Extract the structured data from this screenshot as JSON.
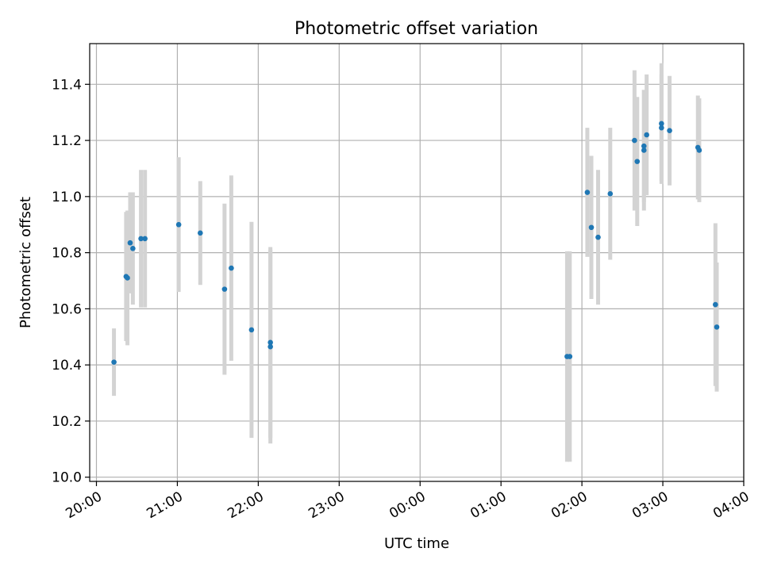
{
  "chart_data": {
    "type": "scatter",
    "title": "Photometric offset variation",
    "xlabel": "UTC time",
    "ylabel": "Photometric offset",
    "x_ticks": [
      "20:00",
      "21:00",
      "22:00",
      "23:00",
      "00:00",
      "01:00",
      "02:00",
      "03:00",
      "04:00"
    ],
    "y_ticks": [
      "10.0",
      "10.2",
      "10.4",
      "10.6",
      "10.8",
      "11.0",
      "11.2",
      "11.4"
    ],
    "xlim": [
      "19:55",
      "04:00"
    ],
    "ylim": [
      9.985,
      11.545
    ],
    "grid": true,
    "colors": {
      "point": "#1f77b4",
      "errorbar": "#d3d3d3",
      "grid": "#b0b0b0"
    },
    "points": [
      {
        "x": "20:13",
        "y": 10.41,
        "err": 0.12
      },
      {
        "x": "20:22",
        "y": 10.715,
        "err": 0.23
      },
      {
        "x": "20:23",
        "y": 10.71,
        "err": 0.24
      },
      {
        "x": "20:25",
        "y": 10.835,
        "err": 0.18
      },
      {
        "x": "20:27",
        "y": 10.815,
        "err": 0.2
      },
      {
        "x": "20:33",
        "y": 10.85,
        "err": 0.245
      },
      {
        "x": "20:36",
        "y": 10.85,
        "err": 0.245
      },
      {
        "x": "21:01",
        "y": 10.9,
        "err": 0.24
      },
      {
        "x": "21:17",
        "y": 10.87,
        "err": 0.185
      },
      {
        "x": "21:35",
        "y": 10.67,
        "err": 0.305
      },
      {
        "x": "21:40",
        "y": 10.745,
        "err": 0.33
      },
      {
        "x": "21:55",
        "y": 10.525,
        "err": 0.385
      },
      {
        "x": "22:09",
        "y": 10.48,
        "err": 0.34
      },
      {
        "x": "22:09",
        "y": 10.465,
        "err": 0.345
      },
      {
        "x": "01:49",
        "y": 10.43,
        "err": 0.375
      },
      {
        "x": "01:51",
        "y": 10.43,
        "err": 0.375
      },
      {
        "x": "02:04",
        "y": 11.015,
        "err": 0.23
      },
      {
        "x": "02:07",
        "y": 10.89,
        "err": 0.255
      },
      {
        "x": "02:12",
        "y": 10.855,
        "err": 0.24
      },
      {
        "x": "02:21",
        "y": 11.01,
        "err": 0.235
      },
      {
        "x": "02:39",
        "y": 11.2,
        "err": 0.25
      },
      {
        "x": "02:41",
        "y": 11.125,
        "err": 0.23
      },
      {
        "x": "02:46",
        "y": 11.165,
        "err": 0.215
      },
      {
        "x": "02:46",
        "y": 11.18,
        "err": 0.2
      },
      {
        "x": "02:48",
        "y": 11.22,
        "err": 0.215
      },
      {
        "x": "02:59",
        "y": 11.26,
        "err": 0.215
      },
      {
        "x": "02:59",
        "y": 11.245,
        "err": 0.19
      },
      {
        "x": "03:05",
        "y": 11.235,
        "err": 0.195
      },
      {
        "x": "03:26",
        "y": 11.175,
        "err": 0.185
      },
      {
        "x": "03:27",
        "y": 11.165,
        "err": 0.185
      },
      {
        "x": "03:39",
        "y": 10.615,
        "err": 0.29
      },
      {
        "x": "03:40",
        "y": 10.535,
        "err": 0.23
      }
    ]
  }
}
